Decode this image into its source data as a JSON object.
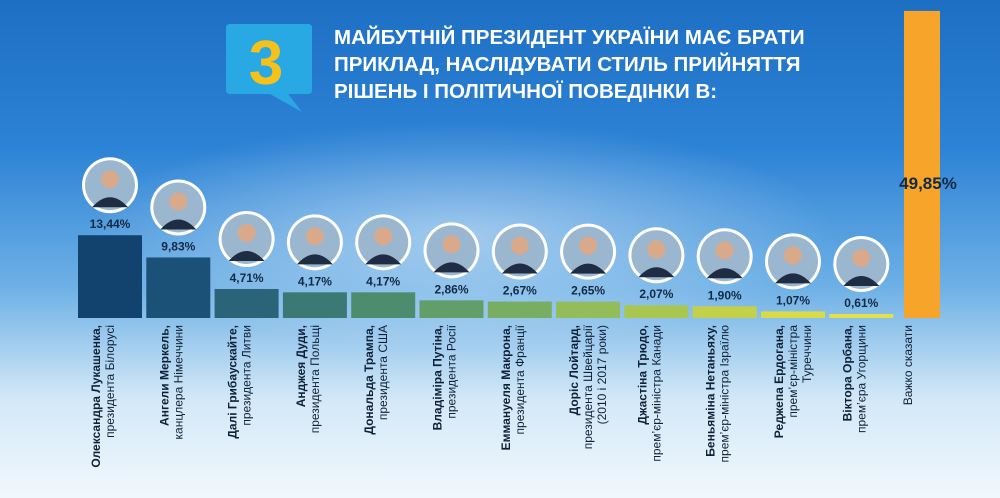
{
  "header": {
    "number": "3",
    "title_lines": [
      "МАЙБУТНІЙ ПРЕЗИДЕНТ УКРАЇНИ МАЄ БРАТИ",
      "ПРИКЛАД, НАСЛІДУВАТИ СТИЛЬ ПРИЙНЯТТЯ",
      "РІШЕНЬ І ПОЛІТИЧНОЇ ПОВЕДІНКИ В:"
    ]
  },
  "colors": {
    "bubble": "#29a9e4",
    "number": "#f6c21a",
    "highlight_bar": "#f7a52a",
    "bar_gradient": [
      "#12436f",
      "#1c5177",
      "#2b6378",
      "#3b7a74",
      "#4d8d6e",
      "#629e69",
      "#79ad62",
      "#93bc5a",
      "#a9c64f",
      "#c3d14a",
      "#d7db48",
      "#e4e148"
    ]
  },
  "chart_data": {
    "type": "bar",
    "title": "МАЙБУТНІЙ ПРЕЗИДЕНТ УКРАЇНИ МАЄ БРАТИ ПРИКЛАД, НАСЛІДУВАТИ СТИЛЬ ПРИЙНЯТТЯ РІШЕНЬ І ПОЛІТИЧНОЇ ПОВЕДІНКИ В:",
    "ylim": [
      0,
      50
    ],
    "grid": false,
    "legend": "none",
    "items": [
      {
        "name": "Олександра Лукашенка,",
        "role": [
          "президента Білорусі"
        ],
        "value": 13.44,
        "value_label": "13,44%",
        "photo": true
      },
      {
        "name": "Ангели Меркель,",
        "role": [
          "канцлера Німеччини"
        ],
        "value": 9.83,
        "value_label": "9,83%",
        "photo": true
      },
      {
        "name": "Далі Грибаускайте,",
        "role": [
          "президента Литви"
        ],
        "value": 4.71,
        "value_label": "4,71%",
        "photo": true
      },
      {
        "name": "Анджея Дуди,",
        "role": [
          "президента Польщі"
        ],
        "value": 4.17,
        "value_label": "4,17%",
        "photo": true
      },
      {
        "name": "Дональда Трампа,",
        "role": [
          "президента США"
        ],
        "value": 4.17,
        "value_label": "4,17%",
        "photo": true
      },
      {
        "name": "Владіміра Путіна,",
        "role": [
          "президента Росії"
        ],
        "value": 2.86,
        "value_label": "2,86%",
        "photo": true
      },
      {
        "name": "Еммануеля Макрона,",
        "role": [
          "президента Франції"
        ],
        "value": 2.67,
        "value_label": "2,67%",
        "photo": true
      },
      {
        "name": "Доріс Лойтард,",
        "role": [
          "президента Швейцарії",
          "(2010 і 2017 роки)"
        ],
        "value": 2.65,
        "value_label": "2,65%",
        "photo": true
      },
      {
        "name": "Джастіна Трюдо,",
        "role": [
          "прем’єр-міністра Канади"
        ],
        "value": 2.07,
        "value_label": "2,07%",
        "photo": true
      },
      {
        "name": "Беньяміна Нетаньяху,",
        "role": [
          "прем’єр-міністра Ізраїлю"
        ],
        "value": 1.9,
        "value_label": "1,90%",
        "photo": true
      },
      {
        "name": "Реджепа Ердогана,",
        "role": [
          "прем’єр-міністра",
          "Туреччини"
        ],
        "value": 1.07,
        "value_label": "1,07%",
        "photo": true
      },
      {
        "name": "Віктора Орбана,",
        "role": [
          "прем’єра Угорщини"
        ],
        "value": 0.61,
        "value_label": "0,61%",
        "photo": true
      },
      {
        "name": "",
        "role": [
          "Важко сказати"
        ],
        "value": 49.85,
        "value_label": "49,85%",
        "photo": false,
        "highlight": true
      }
    ]
  }
}
